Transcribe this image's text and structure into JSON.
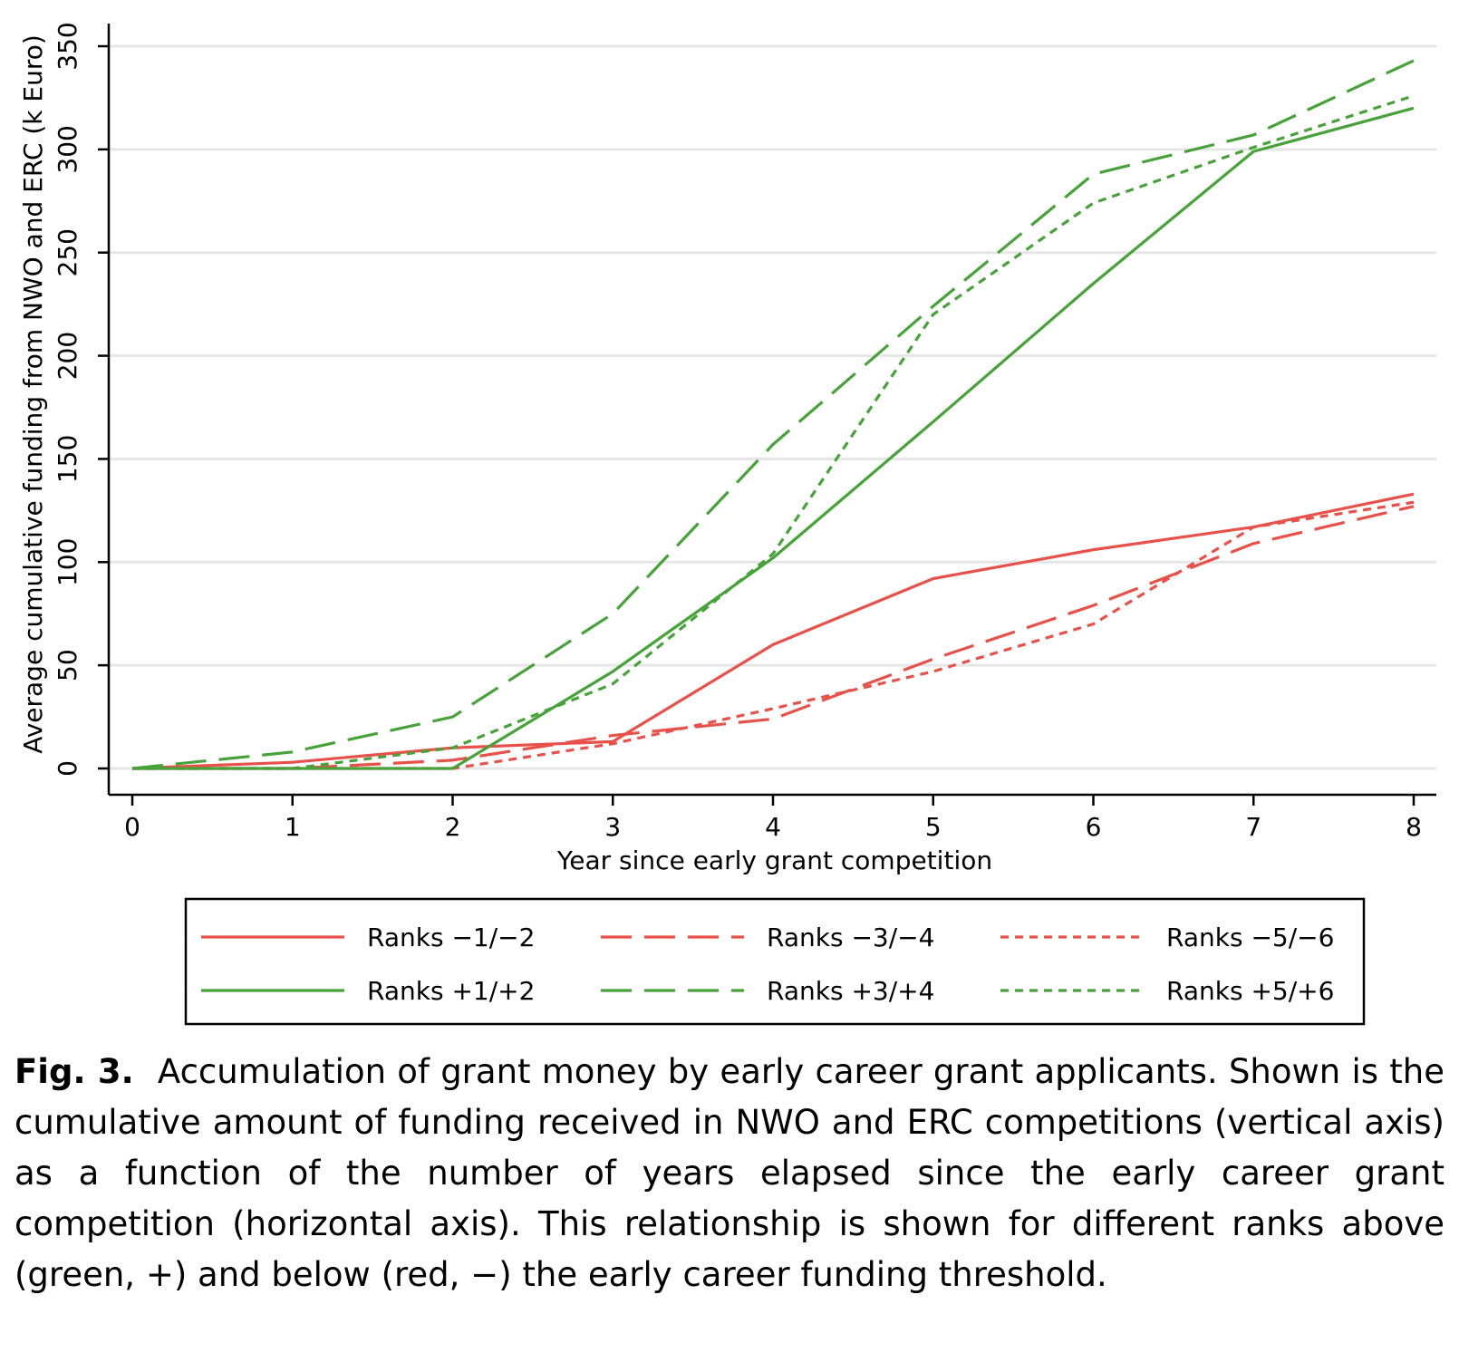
{
  "chart_data": {
    "type": "line",
    "title": "",
    "xlabel": "Year since early grant competition",
    "ylabel": "Average cumulative funding from NWO and ERC (k Euro)",
    "x": [
      0,
      1,
      2,
      3,
      4,
      5,
      6,
      7,
      8
    ],
    "xticks": [
      "0",
      "1",
      "2",
      "3",
      "4",
      "5",
      "6",
      "7",
      "8"
    ],
    "yticks": [
      "0",
      "50",
      "100",
      "150",
      "200",
      "250",
      "300",
      "350"
    ],
    "xlim": [
      0,
      8
    ],
    "ylim": [
      0,
      350
    ],
    "grid": "horizontal",
    "legend_placement": "bottom",
    "colors": {
      "red": "#e8514a",
      "green": "#47a23a"
    },
    "series": [
      {
        "name": "Ranks −1/−2",
        "color": "red",
        "style": "solid",
        "values": [
          0,
          3,
          10,
          13,
          60,
          92,
          106,
          117,
          133
        ]
      },
      {
        "name": "Ranks −3/−4",
        "color": "red",
        "style": "long-dash",
        "values": [
          0,
          0,
          4,
          16,
          24,
          53,
          79,
          109,
          127
        ]
      },
      {
        "name": "Ranks −5/−6",
        "color": "red",
        "style": "short-dash",
        "values": [
          0,
          0,
          0,
          12,
          29,
          47,
          70,
          117,
          129
        ]
      },
      {
        "name": "Ranks +1/+2",
        "color": "green",
        "style": "solid",
        "values": [
          0,
          0,
          0,
          47,
          102,
          168,
          235,
          299,
          320
        ]
      },
      {
        "name": "Ranks +3/+4",
        "color": "green",
        "style": "long-dash",
        "values": [
          0,
          8,
          25,
          75,
          157,
          224,
          288,
          307,
          343
        ]
      },
      {
        "name": "Ranks +5/+6",
        "color": "green",
        "style": "short-dash",
        "values": [
          0,
          0,
          10,
          41,
          104,
          220,
          274,
          301,
          326
        ]
      }
    ]
  },
  "caption": {
    "label": "Fig. 3.",
    "text": "Accumulation of grant money by early career grant applicants. Shown is the cumulative amount of funding received in NWO and ERC competitions (vertical axis) as a function of the number of years elapsed since the early career grant competition (horizontal axis). This relationship is shown for different ranks above (green, +) and below (red, −) the early career funding threshold."
  }
}
